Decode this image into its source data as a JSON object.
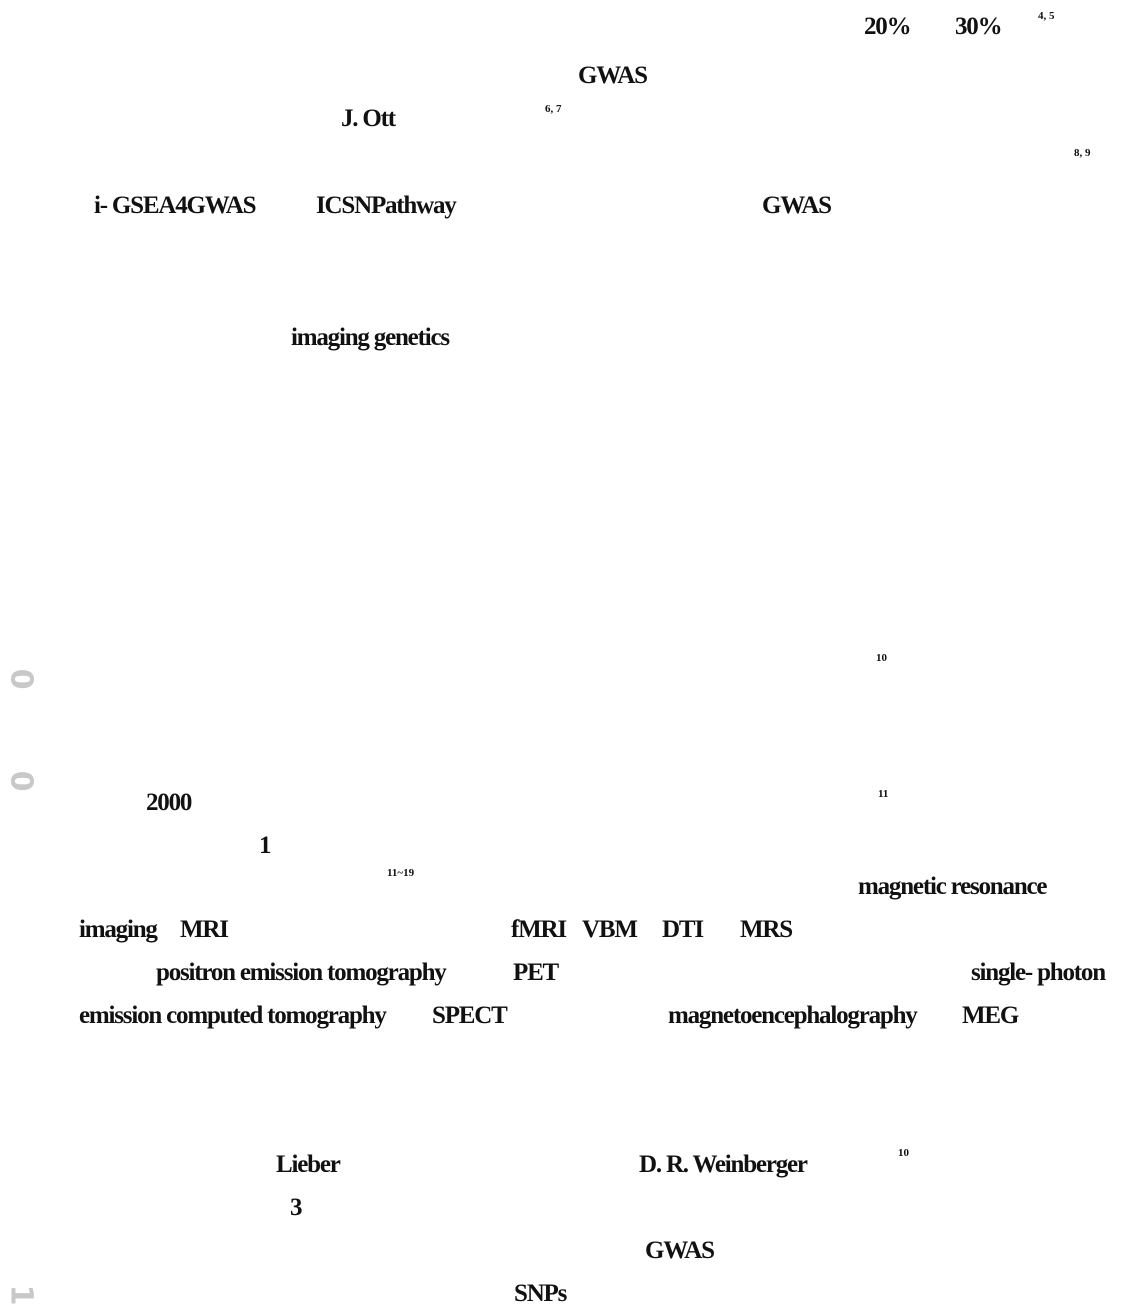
{
  "paragraph1": {
    "pct20": "20%",
    "pct30": "30%",
    "sup_4_5": "4, 5",
    "gwas_a": "GWAS",
    "ott": "J. Ott",
    "sup_6_7": "6, 7",
    "sup_8_9": "8, 9",
    "igsea": "i- GSEA4GWAS",
    "icsnp": "ICSNPathway",
    "gwas_b": "GWAS"
  },
  "paragraph2": {
    "imaging_genetics": "imaging genetics"
  },
  "paragraph3": {
    "sup_10a": "10",
    "year": "2000",
    "sup_11": "11",
    "one": "1",
    "sup_11_19": "11~19",
    "mri_en_1": "magnetic resonance",
    "mri_en_2": "imaging",
    "mri_abbr": "MRI",
    "fmri": "fMRI",
    "vbm": "VBM",
    "dti": "DTI",
    "mrs": "MRS",
    "pet_en": "positron emission tomography",
    "pet_abbr": "PET",
    "spect_en_1": "single- photon",
    "spect_en_2": "emission computed tomography",
    "spect_abbr": "SPECT",
    "meg_en": "magnetoencephalography",
    "meg_abbr": "MEG"
  },
  "paragraph4": {
    "lieber": "Lieber",
    "weinberger": "D. R. Weinberger",
    "sup_10b": "10",
    "three": "3",
    "gwas_c": "GWAS",
    "snps": "SNPs"
  },
  "margin_marks": [
    "0",
    "0",
    "1"
  ]
}
